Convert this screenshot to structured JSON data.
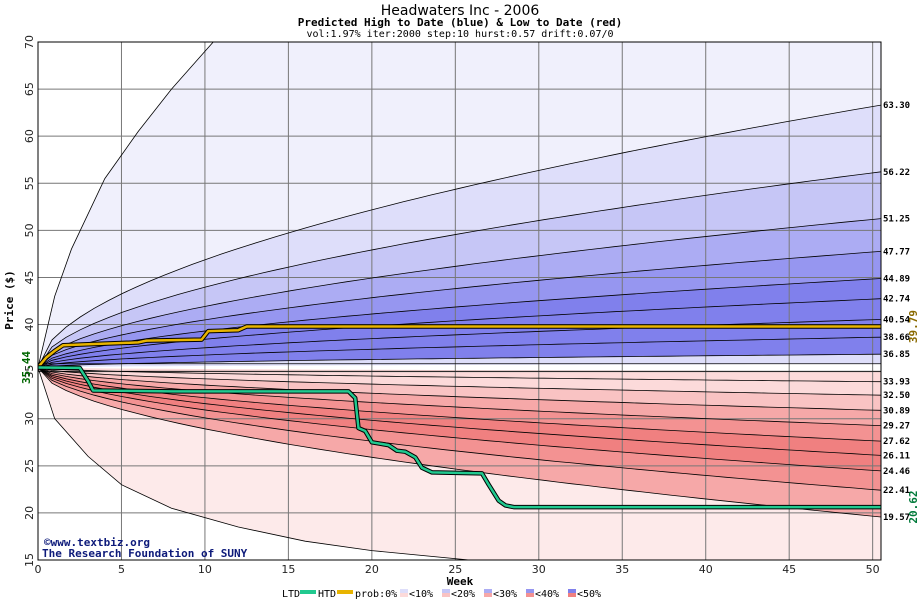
{
  "chart_data": {
    "type": "area",
    "title": "Headwaters Inc - 2006",
    "subtitle": "Predicted High to Date (blue) &  Low to Date (red)",
    "params": "vol:1.97% iter:2000 step:10 hurst:0.57 drift:0.07/0",
    "xlabel": "Week",
    "ylabel": "Price ($)",
    "xlim": [
      0,
      50.5
    ],
    "ylim": [
      15,
      70
    ],
    "xticks": [
      0,
      5,
      10,
      15,
      20,
      25,
      30,
      35,
      40,
      45,
      50
    ],
    "yticks": [
      15,
      20,
      25,
      30,
      35,
      40,
      45,
      50,
      55,
      60,
      65,
      70
    ],
    "grid": true,
    "start_price": 35.44,
    "start_label": "35.44",
    "high_quantile_ends": [
      63.3,
      56.22,
      51.25,
      47.77,
      44.89,
      42.74,
      40.54,
      38.66,
      36.85
    ],
    "high_quantile_labels": [
      "63.30",
      "56.22",
      "51.25",
      "47.77",
      "44.89",
      "42.74",
      "40.54",
      "38.66",
      "36.85"
    ],
    "low_quantile_ends": [
      33.93,
      32.5,
      30.89,
      29.27,
      27.62,
      26.11,
      24.46,
      22.41,
      19.57
    ],
    "low_quantile_labels": [
      "33.93",
      "32.50",
      "30.89",
      "29.27",
      "27.62",
      "26.11",
      "24.46",
      "22.41",
      "19.57"
    ],
    "outer_high_points": [
      [
        0,
        35.44
      ],
      [
        1,
        43
      ],
      [
        2,
        48
      ],
      [
        4,
        55.5
      ],
      [
        6,
        60.5
      ],
      [
        8,
        65
      ],
      [
        10,
        69
      ],
      [
        11,
        71
      ]
    ],
    "outer_low_points": [
      [
        0,
        35.44
      ],
      [
        1,
        30
      ],
      [
        3,
        26
      ],
      [
        5,
        23
      ],
      [
        8,
        20.5
      ],
      [
        12,
        18.5
      ],
      [
        16,
        17
      ],
      [
        20,
        16
      ],
      [
        27,
        14.8
      ]
    ],
    "htd_series": {
      "name": "HTD",
      "end_value": 39.79,
      "end_label": "39.79",
      "points": [
        [
          0,
          35.44
        ],
        [
          0.5,
          36.5
        ],
        [
          1,
          37.2
        ],
        [
          1.5,
          37.8
        ],
        [
          3,
          37.9
        ],
        [
          6,
          38.1
        ],
        [
          6.5,
          38.3
        ],
        [
          9.8,
          38.4
        ],
        [
          10.2,
          39.3
        ],
        [
          12,
          39.4
        ],
        [
          12.5,
          39.79
        ],
        [
          50.5,
          39.79
        ]
      ]
    },
    "ltd_series": {
      "name": "LTD",
      "end_value": 20.62,
      "end_label": "20.62",
      "points": [
        [
          0,
          35.44
        ],
        [
          2.5,
          35.4
        ],
        [
          3,
          34
        ],
        [
          3.3,
          33
        ],
        [
          8,
          32.9
        ],
        [
          18.6,
          32.9
        ],
        [
          19,
          32.2
        ],
        [
          19.2,
          29
        ],
        [
          19.6,
          28.7
        ],
        [
          20,
          27.5
        ],
        [
          21,
          27.2
        ],
        [
          21.5,
          26.6
        ],
        [
          22,
          26.5
        ],
        [
          22.6,
          25.9
        ],
        [
          23,
          24.8
        ],
        [
          23.6,
          24.3
        ],
        [
          26.6,
          24.2
        ],
        [
          27,
          23
        ],
        [
          27.6,
          21.3
        ],
        [
          28,
          20.8
        ],
        [
          28.5,
          20.62
        ],
        [
          50.5,
          20.62
        ]
      ]
    },
    "colors": {
      "htd_line": "#e8b400",
      "ltd_line": "#21c98f",
      "blue_bands": [
        "#f0f0fc",
        "#dedefa",
        "#c6c6f6",
        "#acacf3",
        "#9696f0",
        "#8080ec"
      ],
      "red_bands": [
        "#fdeaea",
        "#fcdada",
        "#f9c3c3",
        "#f6a8a8",
        "#f39292",
        "#f08080"
      ],
      "start_label": "#006600",
      "htd_label": "#8a6a00",
      "ltd_label": "#007a3a"
    }
  },
  "credit": {
    "site": "www.textbiz.org",
    "org": "The Research Foundation of SUNY"
  },
  "legend": {
    "ltd_label": "LTD",
    "htd_label": "HTD",
    "prob_label": "prob:0%",
    "bins": [
      "<10%",
      "<20%",
      "<30%",
      "<40%",
      "<50%"
    ]
  }
}
